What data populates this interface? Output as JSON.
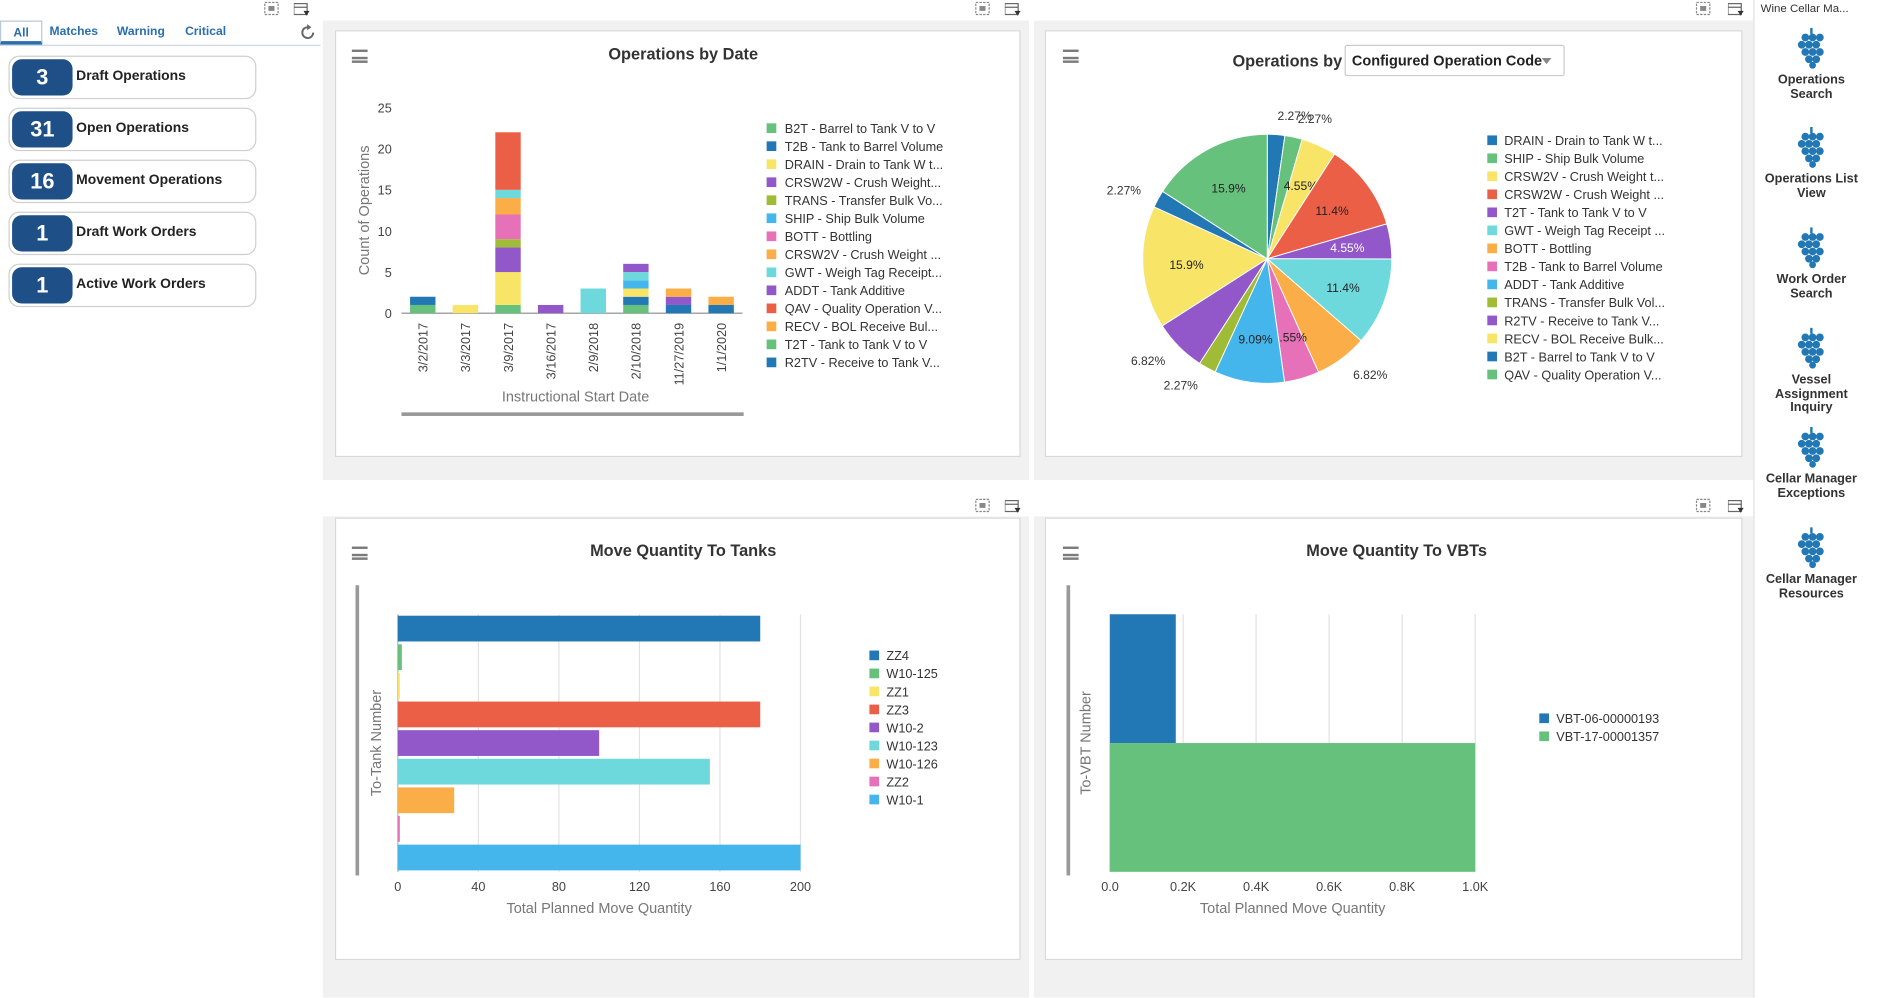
{
  "watchlist": {
    "tabs": [
      "All",
      "Matches",
      "Warning",
      "Critical"
    ],
    "active_tab": "All",
    "items": [
      {
        "count": "3",
        "label": "Draft Operations"
      },
      {
        "count": "31",
        "label": "Open Operations"
      },
      {
        "count": "16",
        "label": "Movement Operations"
      },
      {
        "count": "1",
        "label": "Draft Work Orders"
      },
      {
        "count": "1",
        "label": "Active Work Orders"
      }
    ]
  },
  "springboard": {
    "title": "Wine Cellar Ma...",
    "items": [
      "Operations Search",
      "Operations List View",
      "Work Order Search",
      "Vessel Assignment Inquiry",
      "Cellar Manager Exceptions",
      "Cellar Manager Resources"
    ]
  },
  "colors": {
    "green": "#66c17d",
    "blue": "#2178b4",
    "yellow": "#f8e467",
    "purple": "#9258c9",
    "olive": "#a0bb36",
    "sky": "#45b6ec",
    "pink": "#e671b8",
    "orange": "#fbad48",
    "cyan": "#6dd9dc",
    "red": "#ec5f47",
    "navy": "#1e4f86"
  },
  "chart_data": [
    {
      "type": "bar",
      "stacked": true,
      "title": "Operations by Date",
      "xlabel": "Instructional Start Date",
      "ylabel": "Count of Operations",
      "ylim": [
        0,
        25
      ],
      "yticks": [
        0,
        5,
        10,
        15,
        20,
        25
      ],
      "categories": [
        "3/2/2017",
        "3/3/2017",
        "3/9/2017",
        "3/16/2017",
        "2/9/2018",
        "2/10/2018",
        "11/27/2019",
        "1/1/2020"
      ],
      "series": [
        {
          "name": "B2T - Barrel to Tank V to V",
          "color": "#66c17d",
          "values": [
            1,
            0,
            1,
            0,
            0,
            1,
            0,
            0
          ]
        },
        {
          "name": "T2B - Tank to Barrel Volume",
          "color": "#2178b4",
          "values": [
            1,
            0,
            0,
            0,
            0,
            1,
            1,
            1
          ]
        },
        {
          "name": "DRAIN - Drain to Tank W t...",
          "color": "#f8e467",
          "values": [
            0,
            1,
            4,
            0,
            0,
            1,
            0,
            0
          ]
        },
        {
          "name": "CRSW2W - Crush Weight...",
          "color": "#9258c9",
          "values": [
            0,
            0,
            3,
            1,
            0,
            0,
            1,
            0
          ]
        },
        {
          "name": "TRANS - Transfer Bulk Vo...",
          "color": "#a0bb36",
          "values": [
            0,
            0,
            1,
            0,
            0,
            0,
            0,
            0
          ]
        },
        {
          "name": "SHIP - Ship Bulk Volume",
          "color": "#45b6ec",
          "values": [
            0,
            0,
            0,
            0,
            0,
            1,
            0,
            0
          ]
        },
        {
          "name": "BOTT - Bottling",
          "color": "#e671b8",
          "values": [
            0,
            0,
            3,
            0,
            0,
            0,
            0,
            0
          ]
        },
        {
          "name": "CRSW2V - Crush Weight ...",
          "color": "#fbad48",
          "values": [
            0,
            0,
            2,
            0,
            0,
            0,
            1,
            1
          ]
        },
        {
          "name": "GWT - Weigh Tag Receipt...",
          "color": "#6dd9dc",
          "values": [
            0,
            0,
            1,
            0,
            3,
            1,
            0,
            0
          ]
        },
        {
          "name": "ADDT - Tank Additive",
          "color": "#9258c9",
          "values": [
            0,
            0,
            0,
            0,
            0,
            1,
            0,
            0
          ]
        },
        {
          "name": "QAV - Quality Operation V...",
          "color": "#ec5f47",
          "values": [
            0,
            0,
            7,
            0,
            0,
            0,
            0,
            0
          ]
        },
        {
          "name": "RECV - BOL Receive Bul...",
          "color": "#fbad48",
          "values": [
            0,
            0,
            0,
            0,
            0,
            0,
            0,
            0
          ]
        },
        {
          "name": "T2T - Tank to Tank V to V",
          "color": "#66c17d",
          "values": [
            0,
            0,
            0,
            0,
            0,
            0,
            0,
            0
          ]
        },
        {
          "name": "R2TV - Receive to Tank V...",
          "color": "#2178b4",
          "values": [
            0,
            0,
            0,
            0,
            0,
            0,
            0,
            0
          ]
        }
      ]
    },
    {
      "type": "pie",
      "title": "Operations by",
      "selector": "Configured Operation Code",
      "slices": [
        {
          "name": "DRAIN - Drain to Tank W t...",
          "color": "#2178b4",
          "value": 2.27,
          "label": "2.27%"
        },
        {
          "name": "SHIP - Ship Bulk Volume",
          "color": "#66c17d",
          "value": 2.27,
          "label": "2.27%"
        },
        {
          "name": "CRSW2V - Crush Weight t...",
          "color": "#f8e467",
          "value": 4.55,
          "label": "4.55%"
        },
        {
          "name": "CRSW2W - Crush Weight ...",
          "color": "#ec5f47",
          "value": 11.4,
          "label": "11.4%"
        },
        {
          "name": "T2T - Tank to Tank V to V",
          "color": "#9258c9",
          "value": 4.55,
          "label": "4.55%"
        },
        {
          "name": "GWT - Weigh Tag Receipt ...",
          "color": "#6dd9dc",
          "value": 11.4,
          "label": "11.4%"
        },
        {
          "name": "BOTT - Bottling",
          "color": "#fbad48",
          "value": 6.82,
          "label": "6.82%"
        },
        {
          "name": "T2B - Tank to Barrel Volume",
          "color": "#e671b8",
          "value": 4.55,
          "label": "4.55%"
        },
        {
          "name": "ADDT - Tank Additive",
          "color": "#45b6ec",
          "value": 9.09,
          "label": "9.09%"
        },
        {
          "name": "TRANS - Transfer Bulk Vol...",
          "color": "#a0bb36",
          "value": 2.27,
          "label": "2.27%"
        },
        {
          "name": "R2TV - Receive to Tank V...",
          "color": "#9258c9",
          "value": 6.82,
          "label": "6.82%"
        },
        {
          "name": "RECV - BOL Receive Bulk...",
          "color": "#f8e467",
          "value": 15.9,
          "label": "15.9%"
        },
        {
          "name": "B2T - Barrel to Tank V to V",
          "color": "#2178b4",
          "value": 2.27,
          "label": "2.27%"
        },
        {
          "name": "QAV - Quality Operation V...",
          "color": "#66c17d",
          "value": 15.9,
          "label": "15.9%"
        }
      ]
    },
    {
      "type": "bar",
      "orientation": "horizontal",
      "title": "Move Quantity To Tanks",
      "xlabel": "Total Planned Move Quantity",
      "ylabel": "To-Tank Number",
      "xlim": [
        0,
        200
      ],
      "xticks": [
        0,
        40,
        80,
        120,
        160,
        200
      ],
      "bars": [
        {
          "name": "ZZ4",
          "color": "#2178b4",
          "value": 180
        },
        {
          "name": "W10-125",
          "color": "#66c17d",
          "value": 2
        },
        {
          "name": "ZZ1",
          "color": "#f8e467",
          "value": 1
        },
        {
          "name": "ZZ3",
          "color": "#ec5f47",
          "value": 180
        },
        {
          "name": "W10-2",
          "color": "#9258c9",
          "value": 100
        },
        {
          "name": "W10-123",
          "color": "#6dd9dc",
          "value": 155
        },
        {
          "name": "W10-126",
          "color": "#fbad48",
          "value": 28
        },
        {
          "name": "ZZ2",
          "color": "#e671b8",
          "value": 1
        },
        {
          "name": "W10-1",
          "color": "#45b6ec",
          "value": 200
        }
      ]
    },
    {
      "type": "bar",
      "orientation": "horizontal",
      "title": "Move Quantity To VBTs",
      "xlabel": "Total Planned Move Quantity",
      "ylabel": "To-VBT Number",
      "xlim": [
        0,
        1000
      ],
      "xticks": [
        "0.0",
        "0.2K",
        "0.4K",
        "0.6K",
        "0.8K",
        "1.0K"
      ],
      "xtick_values": [
        0,
        200,
        400,
        600,
        800,
        1000
      ],
      "bars": [
        {
          "name": "VBT-06-00000193",
          "color": "#2178b4",
          "value": 180
        },
        {
          "name": "VBT-17-00001357",
          "color": "#66c17d",
          "value": 1000
        }
      ]
    }
  ]
}
